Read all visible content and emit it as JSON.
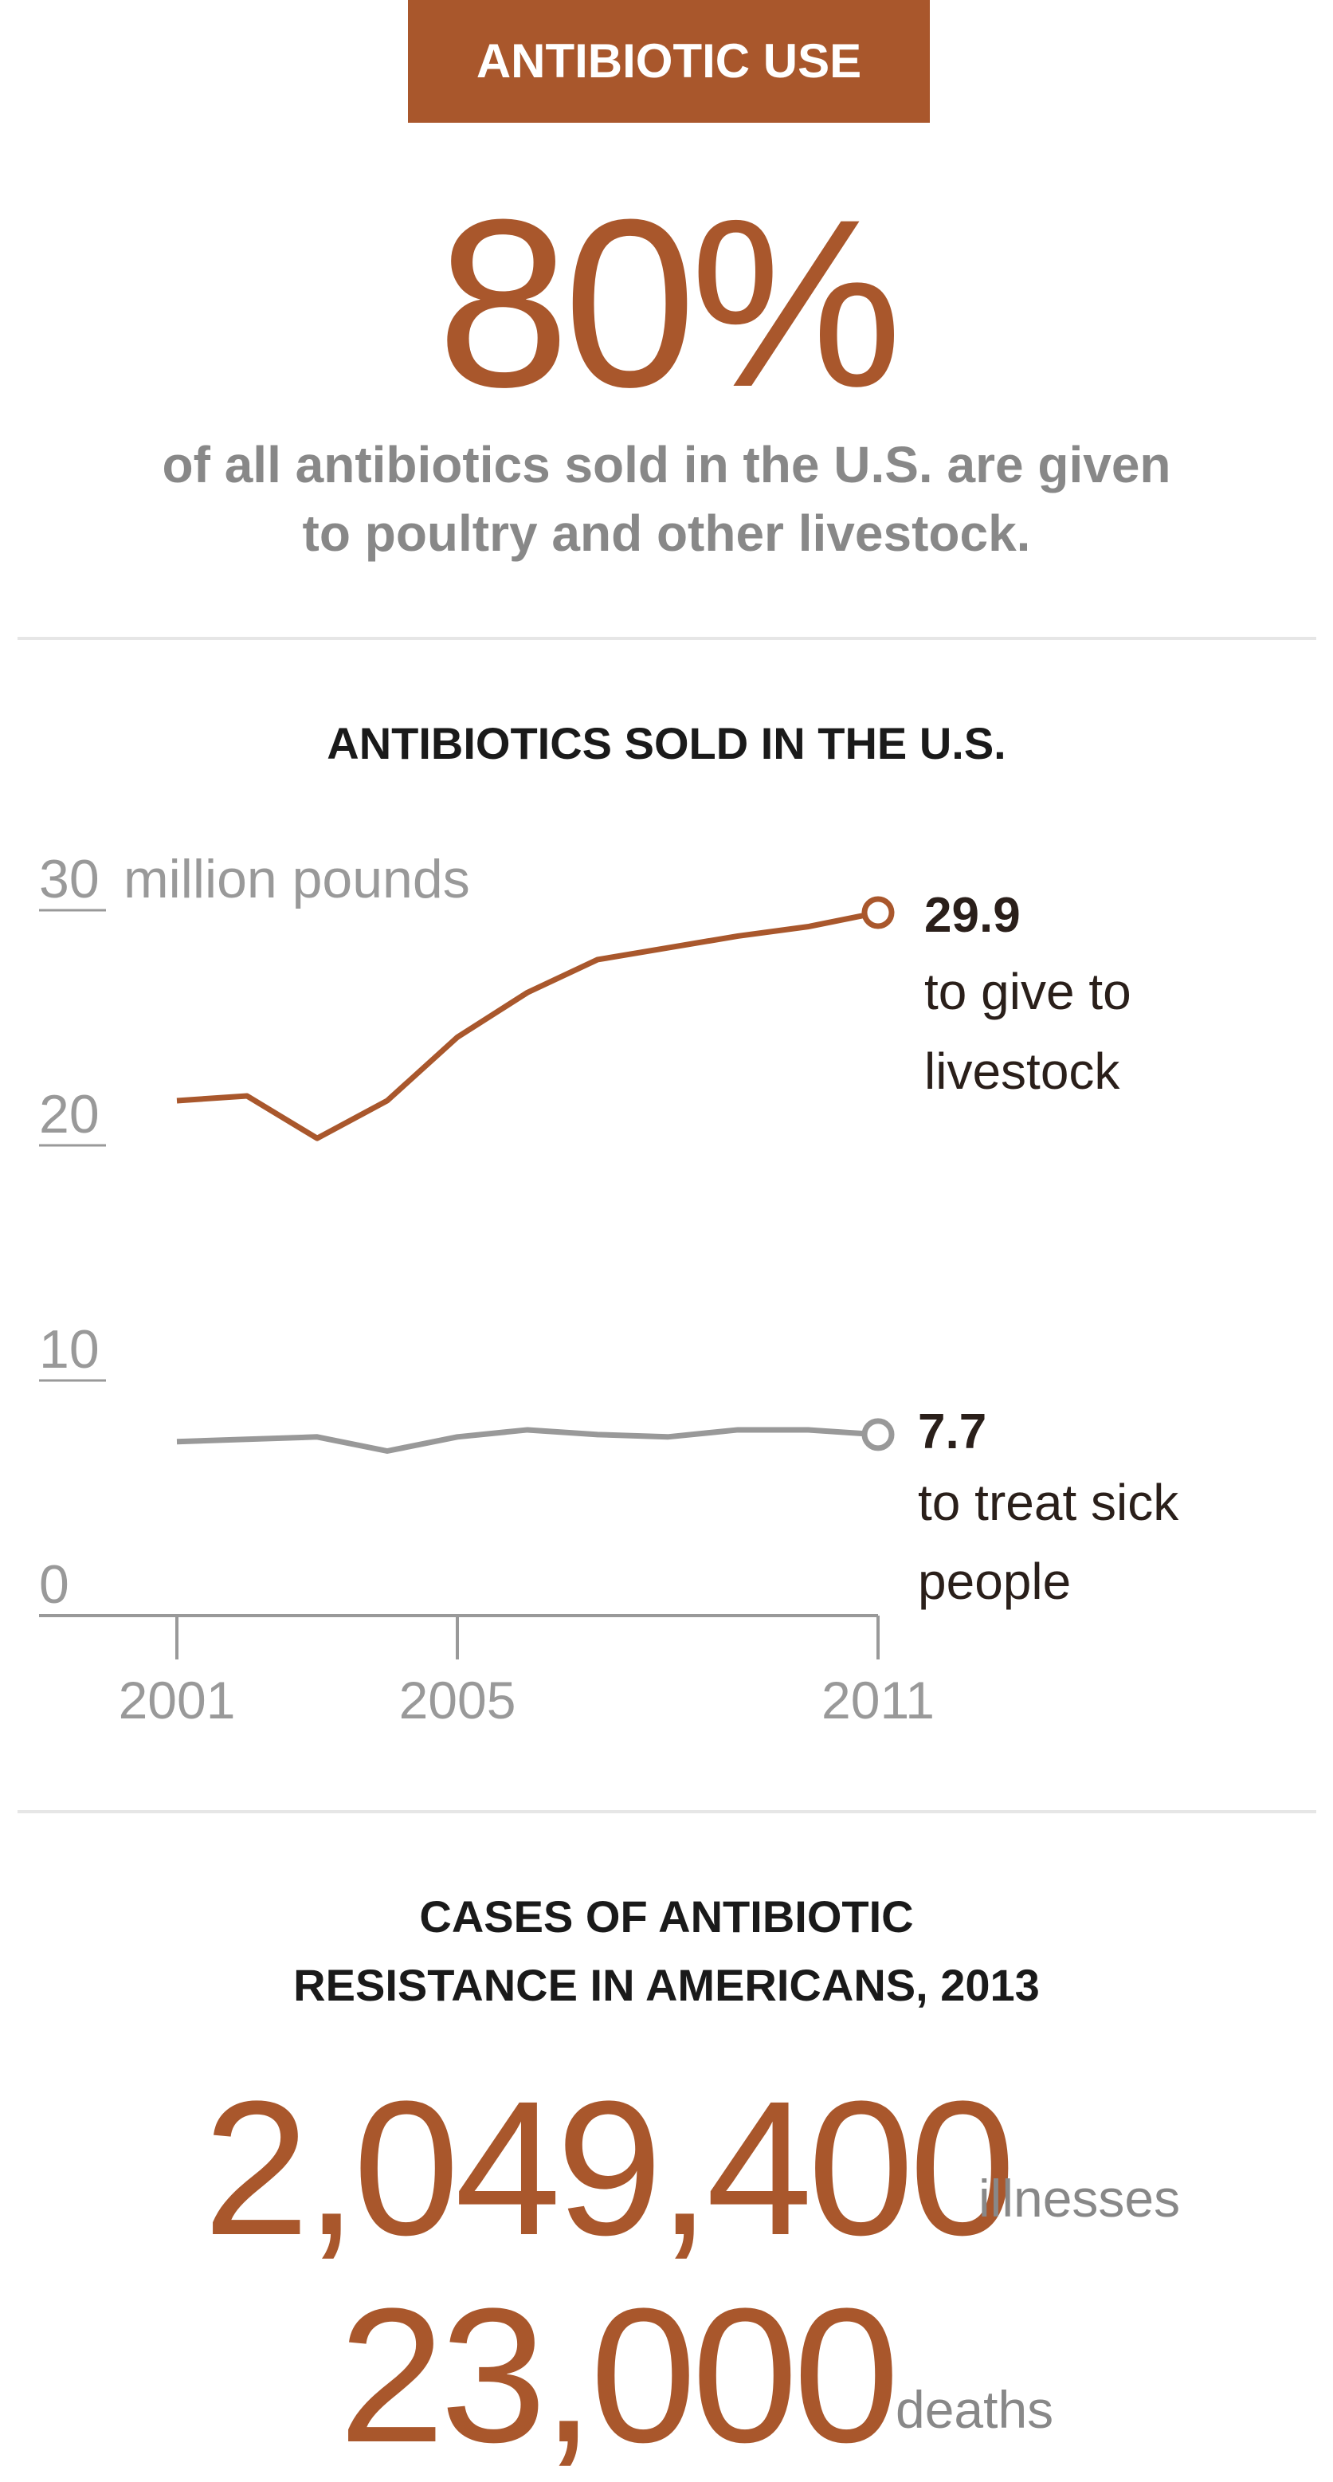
{
  "header": {
    "badge": "ANTIBIOTIC USE"
  },
  "headline": {
    "value": "80%",
    "text_line1": "of all antibiotics sold in the U.S. are given",
    "text_line2": "to poultry and other livestock."
  },
  "colors": {
    "accent": "#a9572c",
    "gray": "#999999",
    "text": "#1a1a1a"
  },
  "chart_data": {
    "type": "line",
    "title": "ANTIBIOTICS SOLD IN THE U.S.",
    "ylabel": "million pounds",
    "ylim": [
      0,
      30
    ],
    "yticks": [
      "0",
      "10",
      "20",
      "30"
    ],
    "x": [
      2001,
      2002,
      2003,
      2004,
      2005,
      2006,
      2007,
      2008,
      2009,
      2010,
      2011
    ],
    "xticks": [
      "2001",
      "2005",
      "2011"
    ],
    "series": [
      {
        "name": "livestock",
        "color": "#a9572c",
        "values": [
          21.9,
          22.1,
          20.3,
          21.9,
          24.6,
          26.5,
          27.9,
          28.4,
          28.9,
          29.3,
          29.9
        ],
        "end_label": "29.9",
        "label_line1": "to give to",
        "label_line2": "livestock"
      },
      {
        "name": "people",
        "color": "#999999",
        "values": [
          7.4,
          7.5,
          7.6,
          7.0,
          7.6,
          7.9,
          7.7,
          7.6,
          7.9,
          7.9,
          7.7
        ],
        "end_label": "7.7",
        "label_line1": "to treat sick",
        "label_line2": "people"
      }
    ]
  },
  "resistance": {
    "title_line1": "CASES OF ANTIBIOTIC",
    "title_line2": "RESISTANCE IN AMERICANS, 2013",
    "illnesses_value": "2,049,400",
    "illnesses_label": "illnesses",
    "deaths_value": "23,000",
    "deaths_label": "deaths"
  }
}
